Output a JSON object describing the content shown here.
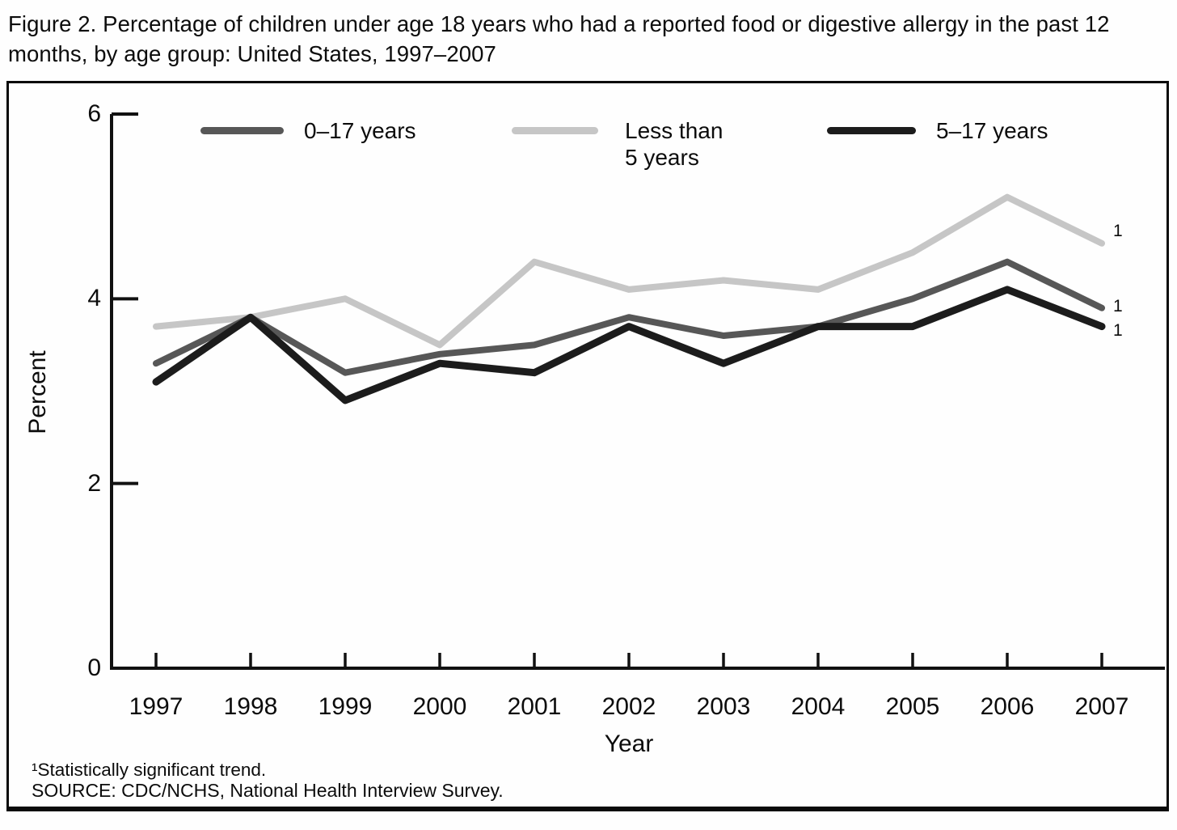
{
  "title": "Figure 2. Percentage of children under age 18 years who had a reported food or digestive allergy in the past 12 months, by age group: United States, 1997–2007",
  "footnotes": {
    "significance": "¹Statistically significant trend.",
    "source": "SOURCE: CDC/NCHS, National Health Interview Survey."
  },
  "sig_marker": "1",
  "colors": {
    "axis": "#111111",
    "text": "#0c0c0c",
    "frame": "#0a0a0a"
  },
  "chart_data": {
    "type": "line",
    "title": "Percentage of children under age 18 years who had a reported food or digestive allergy in the past 12 months, by age group",
    "xlabel": "Year",
    "ylabel": "Percent",
    "categories": [
      "1997",
      "1998",
      "1999",
      "2000",
      "2001",
      "2002",
      "2003",
      "2004",
      "2005",
      "2006",
      "2007"
    ],
    "ylim": [
      0,
      6
    ],
    "y_ticks": [
      6,
      4,
      2,
      0
    ],
    "grid": false,
    "legend_position": "top",
    "series": [
      {
        "name": "0–17 years",
        "legend_label": "0–17 years",
        "color": "#575757",
        "significant_trend": true,
        "values": [
          3.3,
          3.8,
          3.2,
          3.4,
          3.5,
          3.8,
          3.6,
          3.7,
          4.0,
          4.4,
          3.9
        ]
      },
      {
        "name": "Less than 5 years",
        "legend_label": "Less than\n5 years",
        "color": "#c6c6c6",
        "significant_trend": true,
        "values": [
          3.7,
          3.8,
          4.0,
          3.5,
          4.4,
          4.1,
          4.2,
          4.1,
          4.5,
          5.1,
          4.6
        ]
      },
      {
        "name": "5–17 years",
        "legend_label": "5–17 years",
        "color": "#1c1c1c",
        "significant_trend": true,
        "values": [
          3.1,
          3.8,
          2.9,
          3.3,
          3.2,
          3.7,
          3.3,
          3.7,
          3.7,
          4.1,
          3.7
        ]
      }
    ]
  }
}
